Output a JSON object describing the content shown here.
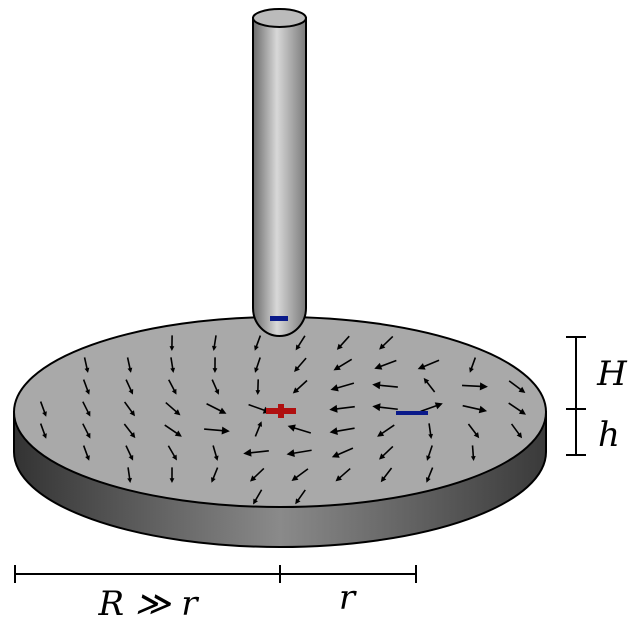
{
  "labels": {
    "H": "H",
    "h": "h",
    "R": "R ≫ r",
    "r": "r"
  }
}
